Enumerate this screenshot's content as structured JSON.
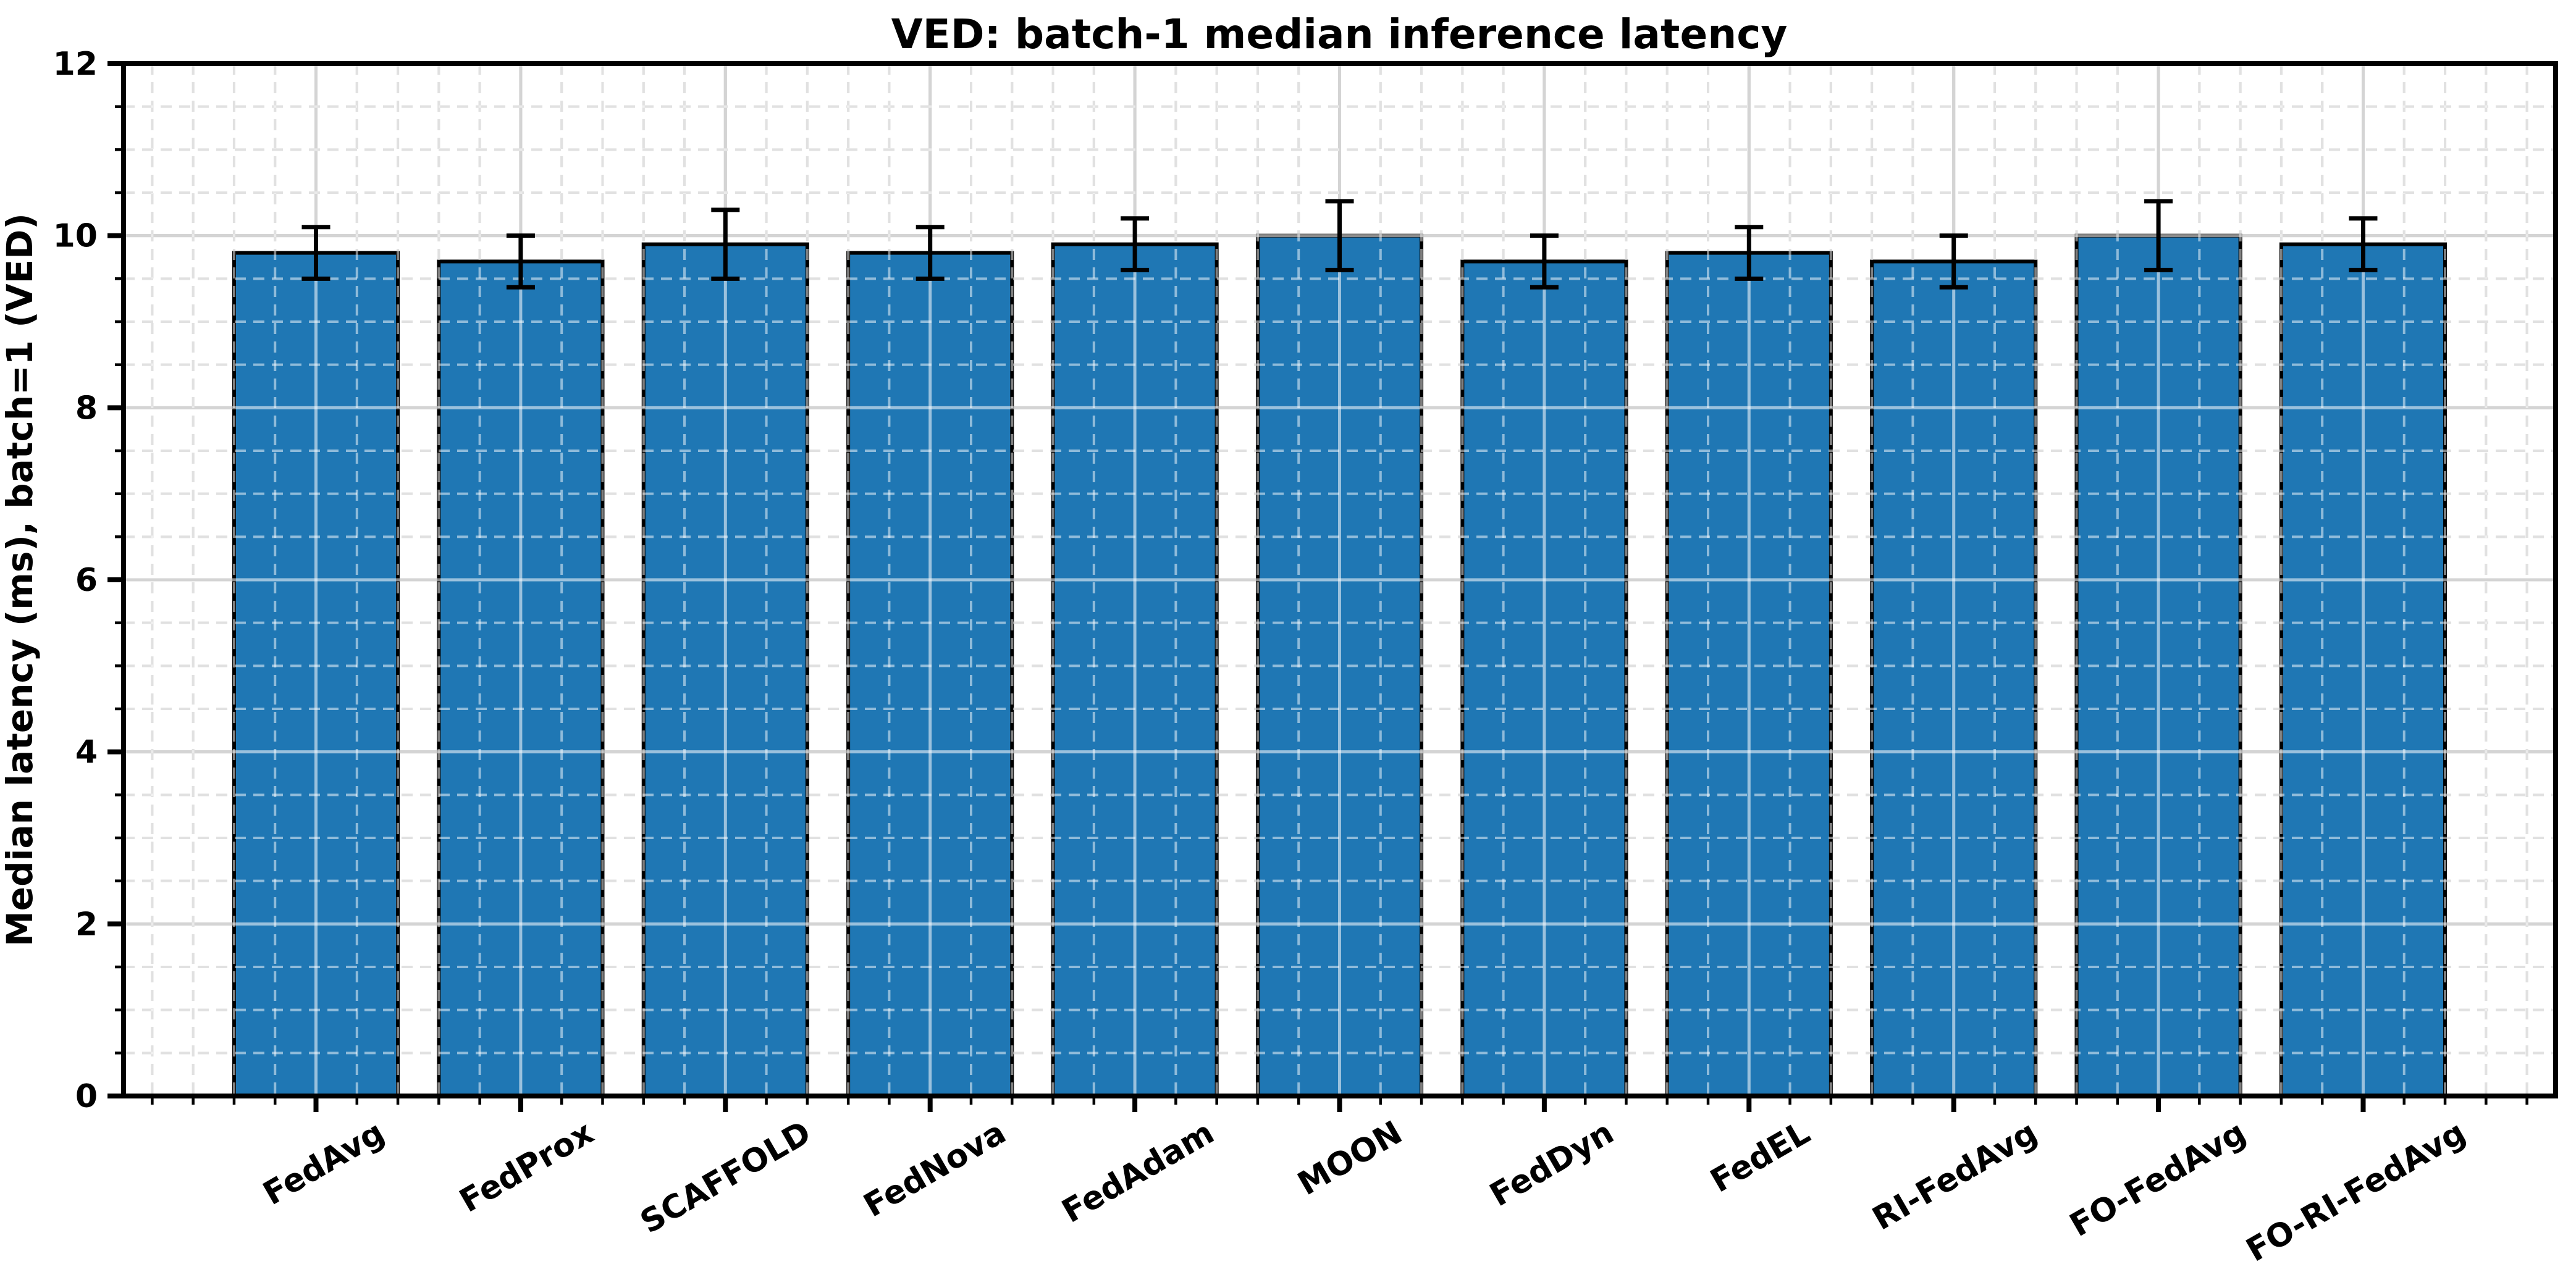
{
  "figure": {
    "background": "#ffffff"
  },
  "chart_data": {
    "type": "bar",
    "title": "VED: batch-1 median inference latency",
    "xlabel": "",
    "ylabel": "Median latency (ms), batch=1 (VED)",
    "categories": [
      "FedAvg",
      "FedProx",
      "SCAFFOLD",
      "FedNova",
      "FedAdam",
      "MOON",
      "FedDyn",
      "FedEL",
      "RI-FedAvg",
      "FO-FedAvg",
      "FO-RI-FedAvg"
    ],
    "values": [
      9.8,
      9.7,
      9.9,
      9.8,
      9.9,
      10.0,
      9.7,
      9.8,
      9.7,
      10.0,
      9.9
    ],
    "errors": [
      0.3,
      0.3,
      0.4,
      0.3,
      0.3,
      0.4,
      0.3,
      0.3,
      0.3,
      0.4,
      0.3
    ],
    "ylim": [
      0,
      12
    ],
    "xlim": [
      -0.94,
      10.94
    ],
    "yticks": [
      0,
      2,
      4,
      6,
      8,
      10,
      12
    ],
    "ytick_labels": [
      "0",
      "2",
      "4",
      "6",
      "8",
      "10",
      "12"
    ],
    "minor_y_step": 0.5,
    "minor_x_step": 0.2,
    "bar_width_units": 0.8,
    "x_tick_rotation_deg": 30,
    "grid": {
      "major": true,
      "minor": true,
      "drawn_above_bars": true
    },
    "legend": "none",
    "colors": {
      "bar_fill": "#1f77b4",
      "bar_edge": "#000000",
      "error_bar": "#000000",
      "grid_major_on_white": "#d4d4d4",
      "grid_minor_on_white": "#e1e1e1",
      "spine": "#000000",
      "text": "#000000",
      "background": "#ffffff"
    }
  }
}
